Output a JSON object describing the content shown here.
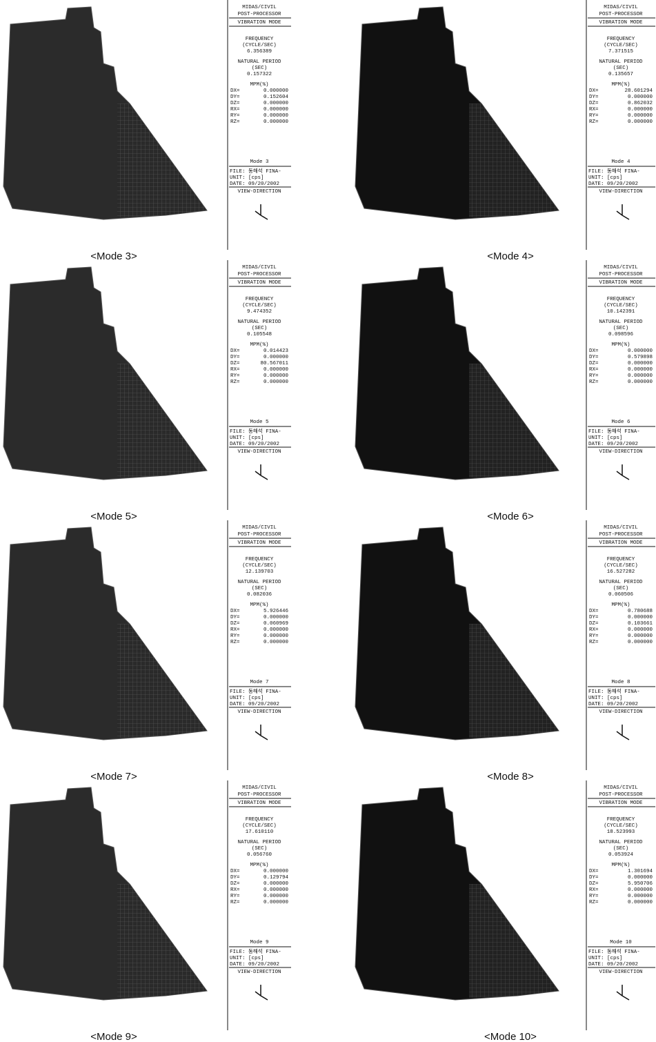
{
  "panels": [
    {
      "caption": "<Mode 3>",
      "program": "MIDAS/CIVIL",
      "module": "POST-PROCESSOR",
      "result": "VIBRATION MODE",
      "freq_label": "FREQUENCY",
      "freq_unit": "(CYCLE/SEC)",
      "frequency": "6.356389",
      "period_label": "NATURAL PERIOD",
      "period_unit": "(SEC)",
      "period": "0.157322",
      "mpm_label": "MPM(%)",
      "mpm": [
        [
          "DX=",
          "0.000000"
        ],
        [
          "DY=",
          "0.152604"
        ],
        [
          "DZ=",
          "0.000000"
        ],
        [
          "RX=",
          "0.000000"
        ],
        [
          "RY=",
          "0.000000"
        ],
        [
          "RZ=",
          "0.000000"
        ]
      ],
      "mode": "Mode 3",
      "file": "FILE: 동해석 FINA-",
      "unit": "UNIT: [cps]",
      "date": "DATE: 09/20/2002",
      "view": "VIEW-DIRECTION"
    },
    {
      "caption": "<Mode 4>",
      "program": "MIDAS/CIVIL",
      "module": "POST-PROCESSOR",
      "result": "VIBRATION MODE",
      "freq_label": "FREQUENCY",
      "freq_unit": "(CYCLE/SEC)",
      "frequency": "7.371515",
      "period_label": "NATURAL PERIOD",
      "period_unit": "(SEC)",
      "period": "0.135657",
      "mpm_label": "MPM(%)",
      "mpm": [
        [
          "DX=",
          "28.601294"
        ],
        [
          "DY=",
          "0.000000"
        ],
        [
          "DZ=",
          "0.862032"
        ],
        [
          "RX=",
          "0.000000"
        ],
        [
          "RY=",
          "0.000000"
        ],
        [
          "RZ=",
          "0.000000"
        ]
      ],
      "mode": "Mode 4",
      "file": "FILE: 동해석 FINA-",
      "unit": "UNIT: [cps]",
      "date": "DATE: 09/20/2002",
      "view": "VIEW-DIRECTION"
    },
    {
      "caption": "<Mode 5>",
      "program": "MIDAS/CIVIL",
      "module": "POST-PROCESSOR",
      "result": "VIBRATION MODE",
      "freq_label": "FREQUENCY",
      "freq_unit": "(CYCLE/SEC)",
      "frequency": "9.474352",
      "period_label": "NATURAL PERIOD",
      "period_unit": "(SEC)",
      "period": "0.105548",
      "mpm_label": "MPM(%)",
      "mpm": [
        [
          "DX=",
          "0.014423"
        ],
        [
          "DY=",
          "0.000000"
        ],
        [
          "DZ=",
          "80.567011"
        ],
        [
          "RX=",
          "0.000000"
        ],
        [
          "RY=",
          "0.000000"
        ],
        [
          "RZ=",
          "0.000000"
        ]
      ],
      "mode": "Mode 5",
      "file": "FILE: 동해석 FINA-",
      "unit": "UNIT: [cps]",
      "date": "DATE: 09/20/2002",
      "view": "VIEW-DIRECTION"
    },
    {
      "caption": "<Mode 6>",
      "program": "MIDAS/CIVIL",
      "module": "POST-PROCESSOR",
      "result": "VIBRATION MODE",
      "freq_label": "FREQUENCY",
      "freq_unit": "(CYCLE/SEC)",
      "frequency": "10.142391",
      "period_label": "NATURAL PERIOD",
      "period_unit": "(SEC)",
      "period": "0.098596",
      "mpm_label": "MPM(%)",
      "mpm": [
        [
          "DX=",
          "0.000000"
        ],
        [
          "DY=",
          "0.579898"
        ],
        [
          "DZ=",
          "0.000000"
        ],
        [
          "RX=",
          "0.000000"
        ],
        [
          "RY=",
          "0.000000"
        ],
        [
          "RZ=",
          "0.000000"
        ]
      ],
      "mode": "Mode 6",
      "file": "FILE: 동해석 FINA-",
      "unit": "UNIT: [cps]",
      "date": "DATE: 09/20/2002",
      "view": "VIEW-DIRECTION"
    },
    {
      "caption": "<Mode 7>",
      "program": "MIDAS/CIVIL",
      "module": "POST-PROCESSOR",
      "result": "VIBRATION MODE",
      "freq_label": "FREQUENCY",
      "freq_unit": "(CYCLE/SEC)",
      "frequency": "12.139703",
      "period_label": "NATURAL PERIOD",
      "period_unit": "(SEC)",
      "period": "0.082036",
      "mpm_label": "MPM(%)",
      "mpm": [
        [
          "DX=",
          "5.926446"
        ],
        [
          "DY=",
          "0.000000"
        ],
        [
          "DZ=",
          "0.060969"
        ],
        [
          "RX=",
          "0.000000"
        ],
        [
          "RY=",
          "0.000000"
        ],
        [
          "RZ=",
          "0.000000"
        ]
      ],
      "mode": "Mode 7",
      "file": "FILE: 동해석 FINA-",
      "unit": "UNIT: [cps]",
      "date": "DATE: 09/20/2002",
      "view": "VIEW-DIRECTION"
    },
    {
      "caption": "<Mode 8>",
      "program": "MIDAS/CIVIL",
      "module": "POST-PROCESSOR",
      "result": "VIBRATION MODE",
      "freq_label": "FREQUENCY",
      "freq_unit": "(CYCLE/SEC)",
      "frequency": "16.527282",
      "period_label": "NATURAL PERIOD",
      "period_unit": "(SEC)",
      "period": "0.060506",
      "mpm_label": "MPM(%)",
      "mpm": [
        [
          "DX=",
          "0.780688"
        ],
        [
          "DY=",
          "0.000000"
        ],
        [
          "DZ=",
          "0.103661"
        ],
        [
          "RX=",
          "0.000000"
        ],
        [
          "RY=",
          "0.000000"
        ],
        [
          "RZ=",
          "0.000000"
        ]
      ],
      "mode": "Mode 8",
      "file": "FILE: 동해석 FINA-",
      "unit": "UNIT: [cps]",
      "date": "DATE: 09/20/2002",
      "view": "VIEW-DIRECTION"
    },
    {
      "caption": "<Mode 9>",
      "program": "MIDAS/CIVIL",
      "module": "POST-PROCESSOR",
      "result": "VIBRATION MODE",
      "freq_label": "FREQUENCY",
      "freq_unit": "(CYCLE/SEC)",
      "frequency": "17.610110",
      "period_label": "NATURAL PERIOD",
      "period_unit": "(SEC)",
      "period": "0.056760",
      "mpm_label": "MPM(%)",
      "mpm": [
        [
          "DX=",
          "0.000000"
        ],
        [
          "DY=",
          "0.129794"
        ],
        [
          "DZ=",
          "0.000000"
        ],
        [
          "RX=",
          "0.000000"
        ],
        [
          "RY=",
          "0.000000"
        ],
        [
          "RZ=",
          "0.000000"
        ]
      ],
      "mode": "Mode 9",
      "file": "FILE: 동해석 FINA-",
      "unit": "UNIT: [cps]",
      "date": "DATE: 09/20/2002",
      "view": "VIEW-DIRECTION"
    },
    {
      "caption": "<Mode 10>",
      "program": "MIDAS/CIVIL",
      "module": "POST-PROCESSOR",
      "result": "VIBRATION MODE",
      "freq_label": "FREQUENCY",
      "freq_unit": "(CYCLE/SEC)",
      "frequency": "18.523993",
      "period_label": "NATURAL PERIOD",
      "period_unit": "(SEC)",
      "period": "0.053924",
      "mpm_label": "MPM(%)",
      "mpm": [
        [
          "DX=",
          "1.301694"
        ],
        [
          "DY=",
          "0.000000"
        ],
        [
          "DZ=",
          "5.950706"
        ],
        [
          "RX=",
          "0.000000"
        ],
        [
          "RY=",
          "0.000000"
        ],
        [
          "RZ=",
          "0.000000"
        ]
      ],
      "mode": "Mode 10",
      "file": "FILE: 동해석 FINA-",
      "unit": "UNIT: [cps]",
      "date": "DATE: 09/20/2002",
      "view": "VIEW-DIRECTION"
    }
  ]
}
